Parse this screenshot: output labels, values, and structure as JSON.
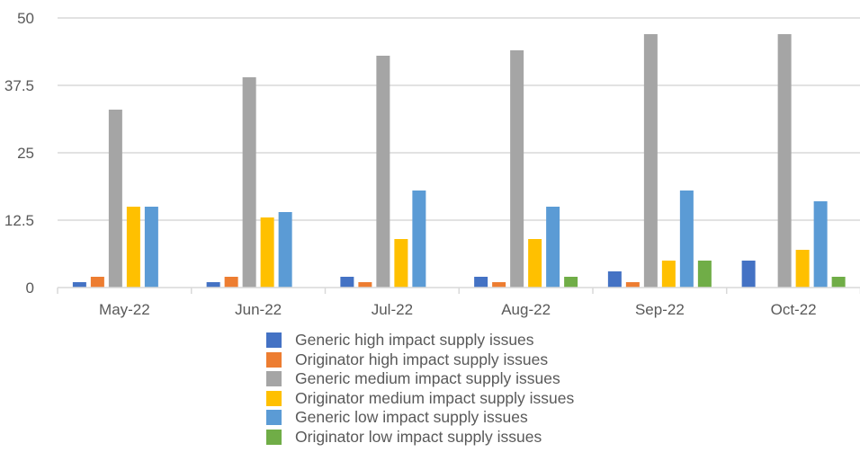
{
  "chart_data": {
    "type": "bar",
    "title": "",
    "xlabel": "",
    "ylabel": "",
    "categories": [
      "May-22",
      "Jun-22",
      "Jul-22",
      "Aug-22",
      "Sep-22",
      "Oct-22"
    ],
    "ylim": [
      0,
      50
    ],
    "yticks": [
      "0",
      "12.5",
      "25",
      "37.5",
      "50"
    ],
    "ytick_values": [
      0,
      12.5,
      25,
      37.5,
      50
    ],
    "grid": true,
    "legend_position": "bottom",
    "series": [
      {
        "name": "Generic high impact supply issues",
        "color": "#4472C4",
        "values": [
          1,
          1,
          2,
          2,
          3,
          5
        ]
      },
      {
        "name": "Originator high impact supply issues",
        "color": "#ED7D31",
        "values": [
          2,
          2,
          1,
          1,
          1,
          0
        ]
      },
      {
        "name": "Generic medium impact supply issues",
        "color": "#A5A5A5",
        "values": [
          33,
          39,
          43,
          44,
          47,
          47
        ]
      },
      {
        "name": "Originator medium impact supply issues",
        "color": "#FFC000",
        "values": [
          15,
          13,
          9,
          9,
          5,
          7
        ]
      },
      {
        "name": "Generic low impact supply issues",
        "color": "#5B9BD5",
        "values": [
          15,
          14,
          18,
          15,
          18,
          16
        ]
      },
      {
        "name": "Originator low impact supply issues",
        "color": "#70AD47",
        "values": [
          0,
          0,
          0,
          2,
          5,
          2
        ]
      }
    ]
  }
}
